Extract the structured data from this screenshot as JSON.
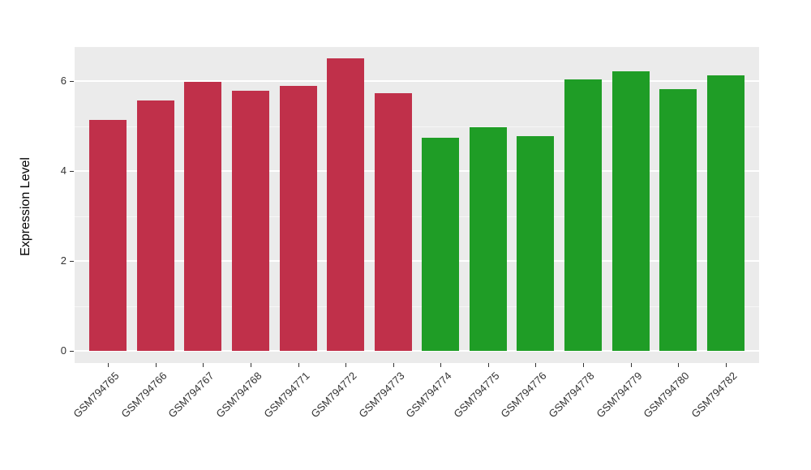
{
  "chart_data": {
    "type": "bar",
    "title": "",
    "ylabel": "Expression Level",
    "xlabel": "",
    "ylim": [
      0,
      6.5
    ],
    "yticks": [
      0,
      2,
      4,
      6
    ],
    "yminor_ticks": [
      1,
      3,
      5
    ],
    "grid": "on",
    "legend_position": "none",
    "panel_background": "#EBEBEB",
    "grid_color": "#FFFFFF",
    "categories": [
      "GSM794765",
      "GSM794766",
      "GSM794767",
      "GSM794768",
      "GSM794771",
      "GSM794772",
      "GSM794773",
      "GSM794774",
      "GSM794775",
      "GSM794776",
      "GSM794778",
      "GSM794779",
      "GSM794780",
      "GSM794782"
    ],
    "values": [
      5.13,
      5.57,
      5.98,
      5.79,
      5.89,
      6.5,
      5.73,
      4.74,
      4.97,
      4.78,
      6.03,
      6.22,
      5.82,
      6.12
    ],
    "groups": [
      "group1",
      "group1",
      "group1",
      "group1",
      "group1",
      "group1",
      "group1",
      "group2",
      "group2",
      "group2",
      "group2",
      "group2",
      "group2",
      "group2"
    ],
    "group_colors": {
      "group1": "#C0304A",
      "group2": "#1F9D26"
    }
  }
}
